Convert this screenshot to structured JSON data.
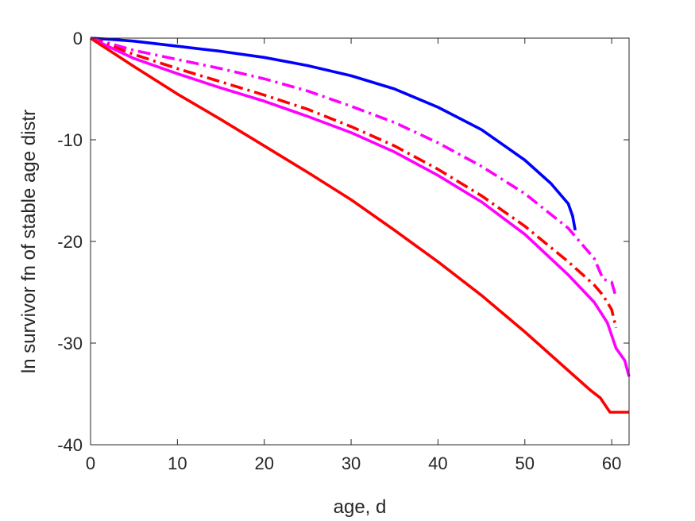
{
  "chart_data": {
    "type": "line",
    "title": "",
    "xlabel": "age, d",
    "ylabel": "ln survivor fn of stable age distr",
    "xlim": [
      0,
      62
    ],
    "ylim": [
      -40,
      0
    ],
    "xticks": [
      0,
      10,
      20,
      30,
      40,
      50,
      60
    ],
    "yticks": [
      0,
      -10,
      -20,
      -30,
      -40
    ],
    "xtick_labels": [
      "0",
      "10",
      "20",
      "30",
      "40",
      "50",
      "60"
    ],
    "ytick_labels": [
      "0",
      "-10",
      "-20",
      "-30",
      "-40"
    ],
    "grid": false,
    "legend": "none",
    "series": [
      {
        "color": "#0000ff",
        "style": "solid",
        "x": [
          0,
          2,
          5,
          10,
          15,
          20,
          25,
          30,
          35,
          40,
          45,
          50,
          53,
          55,
          55.5,
          55.8
        ],
        "y": [
          0,
          -0.1,
          -0.3,
          -0.8,
          -1.3,
          -1.9,
          -2.7,
          -3.7,
          -5.0,
          -6.8,
          -9.0,
          -12.0,
          -14.3,
          -16.3,
          -17.5,
          -18.9
        ]
      },
      {
        "color": "#ff00ff",
        "style": "dashdot",
        "x": [
          0,
          5,
          10,
          15,
          20,
          25,
          30,
          35,
          40,
          45,
          50,
          55,
          58,
          59,
          60,
          60.5
        ],
        "y": [
          0,
          -1.2,
          -2.1,
          -3.0,
          -4.0,
          -5.2,
          -6.7,
          -8.3,
          -10.3,
          -12.6,
          -15.3,
          -18.7,
          -21.7,
          -23.7,
          -24.0,
          -25.5
        ]
      },
      {
        "color": "#ff0000",
        "style": "dashdot",
        "x": [
          0,
          5,
          10,
          15,
          20,
          25,
          30,
          35,
          40,
          45,
          50,
          55,
          58,
          59,
          60,
          60.5
        ],
        "y": [
          0,
          -1.6,
          -3.0,
          -4.3,
          -5.6,
          -7.0,
          -8.7,
          -10.6,
          -12.9,
          -15.5,
          -18.5,
          -22.0,
          -24.3,
          -25.3,
          -26.7,
          -28.5
        ]
      },
      {
        "color": "#ff00ff",
        "style": "solid",
        "x": [
          0,
          5,
          10,
          15,
          20,
          25,
          30,
          35,
          40,
          45,
          50,
          55,
          58,
          59.5,
          60.5,
          61.5,
          62
        ],
        "y": [
          0,
          -2.0,
          -3.5,
          -4.9,
          -6.2,
          -7.7,
          -9.3,
          -11.2,
          -13.5,
          -16.1,
          -19.3,
          -23.3,
          -26.0,
          -28.0,
          -30.5,
          -31.7,
          -33.3
        ]
      },
      {
        "color": "#ff0000",
        "style": "solid",
        "x": [
          0,
          5,
          10,
          15,
          20,
          25,
          30,
          35,
          40,
          45,
          50,
          55,
          57.5,
          58.7,
          59.8,
          62
        ],
        "y": [
          0,
          -2.8,
          -5.5,
          -8.0,
          -10.6,
          -13.2,
          -15.9,
          -18.9,
          -22.0,
          -25.3,
          -28.9,
          -32.7,
          -34.6,
          -35.4,
          -36.8,
          -36.8
        ]
      }
    ]
  }
}
